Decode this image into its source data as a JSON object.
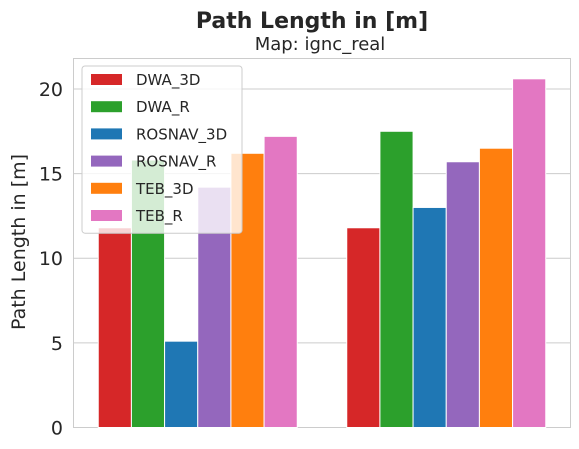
{
  "chart_data": {
    "type": "bar",
    "title": "Path Length in [m]",
    "subtitle": "Map: ignc_real",
    "xlabel": "",
    "ylabel": "Path Length in [m]",
    "ylim": [
      0,
      21.8
    ],
    "yticks": [
      0,
      5,
      10,
      15,
      20
    ],
    "grid": true,
    "legend_position": "top-left",
    "groups": [
      "",
      ""
    ],
    "series": [
      {
        "name": "DWA_3D",
        "color": "#d62728",
        "values": [
          11.8,
          11.8
        ]
      },
      {
        "name": "DWA_R",
        "color": "#2ca02c",
        "values": [
          15.8,
          17.5
        ]
      },
      {
        "name": "ROSNAV_3D",
        "color": "#1f77b4",
        "values": [
          5.1,
          13.0
        ]
      },
      {
        "name": "ROSNAV_R",
        "color": "#9467bd",
        "values": [
          14.2,
          15.7
        ]
      },
      {
        "name": "TEB_3D",
        "color": "#ff7f0e",
        "values": [
          16.2,
          16.5
        ]
      },
      {
        "name": "TEB_R",
        "color": "#e377c2",
        "values": [
          17.2,
          20.6
        ]
      }
    ]
  }
}
